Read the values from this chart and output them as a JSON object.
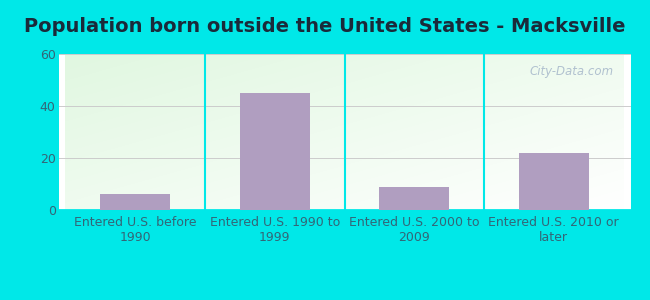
{
  "title": "Population born outside the United States - Macksville",
  "categories": [
    "Entered U.S. before\n1990",
    "Entered U.S. 1990 to\n1999",
    "Entered U.S. 2000 to\n2009",
    "Entered U.S. 2010 or\nlater"
  ],
  "values": [
    6,
    45,
    9,
    22
  ],
  "bar_color": "#b09ec0",
  "ylim": [
    0,
    60
  ],
  "yticks": [
    0,
    20,
    40,
    60
  ],
  "background_outer": "#00e8e8",
  "grid_color": "#cccccc",
  "title_fontsize": 14,
  "tick_fontsize": 9,
  "watermark_text": "City-Data.com",
  "watermark_color": "#aabbcc",
  "title_color": "#1a2a3a",
  "tick_color": "#336677"
}
